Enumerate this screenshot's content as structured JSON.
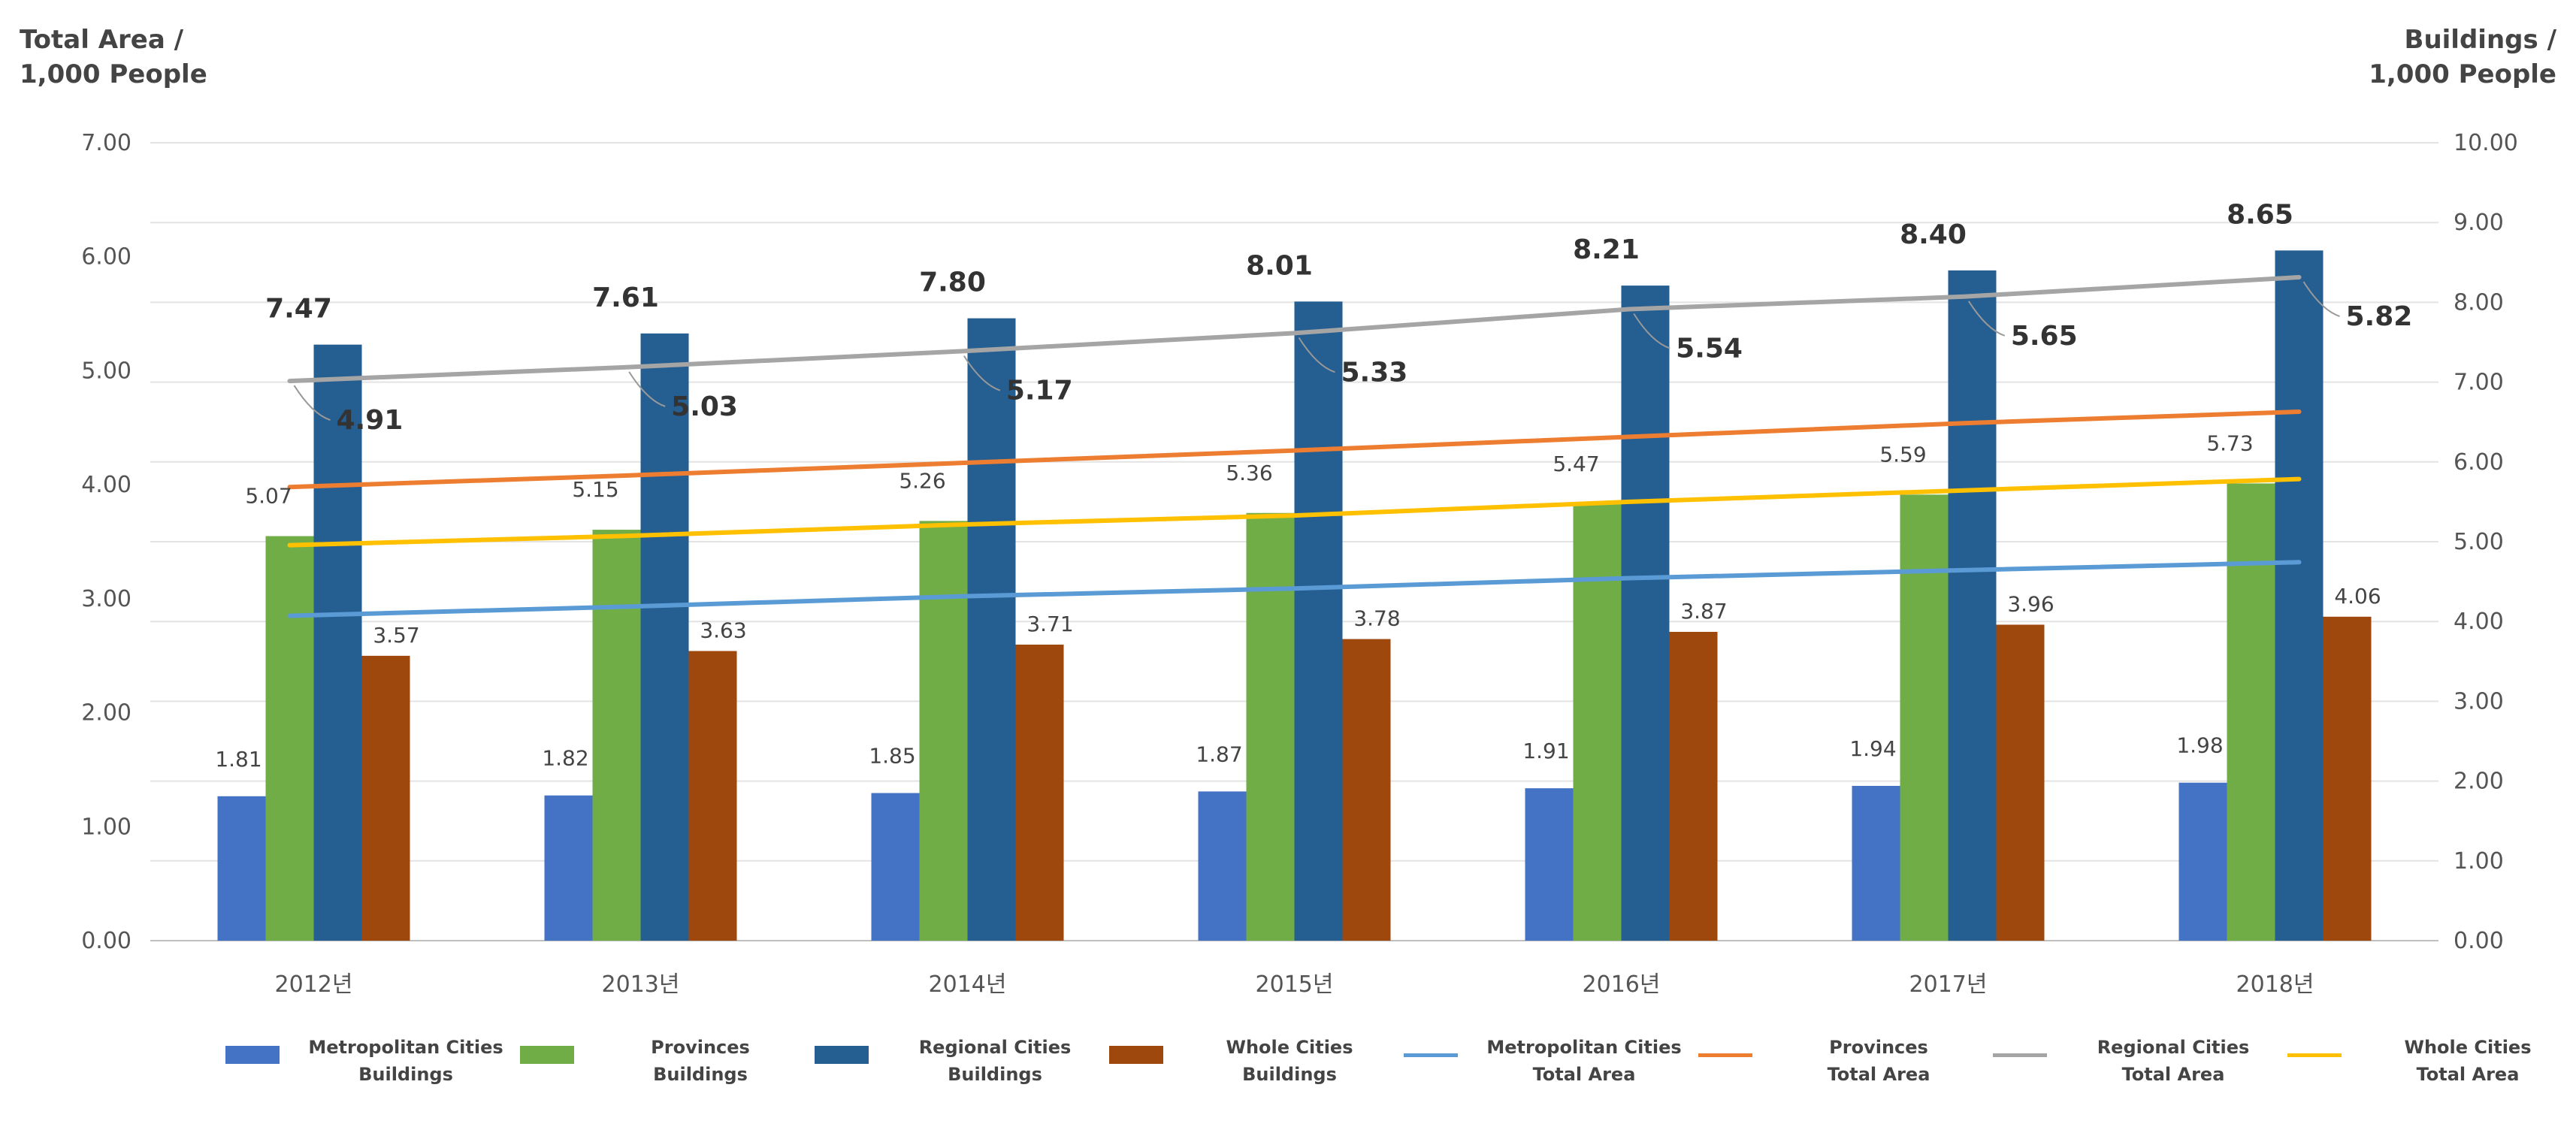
{
  "chart_data": {
    "type": "bar",
    "categories": [
      "2012년",
      "2013년",
      "2014년",
      "2015년",
      "2016년",
      "2017년",
      "2018년"
    ],
    "y_left": {
      "title_line1": "Total Area /",
      "title_line2": "1,000 People",
      "range": [
        0,
        7
      ],
      "ticks": [
        "0.00",
        "1.00",
        "2.00",
        "3.00",
        "4.00",
        "5.00",
        "6.00",
        "7.00"
      ]
    },
    "y_right": {
      "title_line1": "Buildings /",
      "title_line2": "1,000 People",
      "range": [
        0,
        10
      ],
      "ticks": [
        "0.00",
        "1.00",
        "2.00",
        "3.00",
        "4.00",
        "5.00",
        "6.00",
        "7.00",
        "8.00",
        "9.00",
        "10.00"
      ]
    },
    "bar_series": [
      {
        "name_line1": "Metropolitan Cities",
        "name_line2": "Buildings",
        "color": "#4472C4",
        "axis": "right",
        "values": [
          1.81,
          1.82,
          1.85,
          1.87,
          1.91,
          1.94,
          1.98
        ],
        "labels": [
          "1.81",
          "1.82",
          "1.85",
          "1.87",
          "1.91",
          "1.94",
          "1.98"
        ]
      },
      {
        "name_line1": "Provinces",
        "name_line2": "Buildings",
        "color": "#70AD47",
        "axis": "right",
        "values": [
          5.07,
          5.15,
          5.26,
          5.36,
          5.47,
          5.59,
          5.73
        ],
        "labels": [
          "5.07",
          "5.15",
          "5.26",
          "5.36",
          "5.47",
          "5.59",
          "5.73"
        ]
      },
      {
        "name_line1": "Regional Cities",
        "name_line2": "Buildings",
        "color": "#255E91",
        "axis": "right",
        "values": [
          7.47,
          7.61,
          7.8,
          8.01,
          8.21,
          8.4,
          8.65
        ],
        "labels": [
          "7.47",
          "7.61",
          "7.80",
          "8.01",
          "8.21",
          "8.40",
          "8.65"
        ]
      },
      {
        "name_line1": "Whole Cities",
        "name_line2": "Buildings",
        "color": "#9E480E",
        "axis": "right",
        "values": [
          3.57,
          3.63,
          3.71,
          3.78,
          3.87,
          3.96,
          4.06
        ],
        "labels": [
          "3.57",
          "3.63",
          "3.71",
          "3.78",
          "3.87",
          "3.96",
          "4.06"
        ]
      }
    ],
    "line_series": [
      {
        "name_line1": "Metropolitan Cities",
        "name_line2": "Total Area",
        "color": "#5B9BD5",
        "axis": "left",
        "values": [
          2.85,
          2.93,
          3.02,
          3.09,
          3.18,
          3.25,
          3.32
        ]
      },
      {
        "name_line1": "Provinces",
        "name_line2": "Total Area",
        "color": "#ED7D31",
        "axis": "left",
        "values": [
          3.98,
          4.08,
          4.19,
          4.3,
          4.42,
          4.54,
          4.64
        ]
      },
      {
        "name_line1": "Regional Cities",
        "name_line2": "Total Area",
        "color": "#A5A5A5",
        "axis": "left",
        "values": [
          4.91,
          5.03,
          5.17,
          5.33,
          5.54,
          5.65,
          5.82
        ],
        "labels": [
          "4.91",
          "5.03",
          "5.17",
          "5.33",
          "5.54",
          "5.65",
          "5.82"
        ]
      },
      {
        "name_line1": "Whole Cities",
        "name_line2": "Total Area",
        "color": "#FFC000",
        "axis": "left",
        "values": [
          3.47,
          3.55,
          3.65,
          3.73,
          3.85,
          3.95,
          4.05
        ]
      }
    ],
    "grid": true,
    "legend": "bottom"
  }
}
